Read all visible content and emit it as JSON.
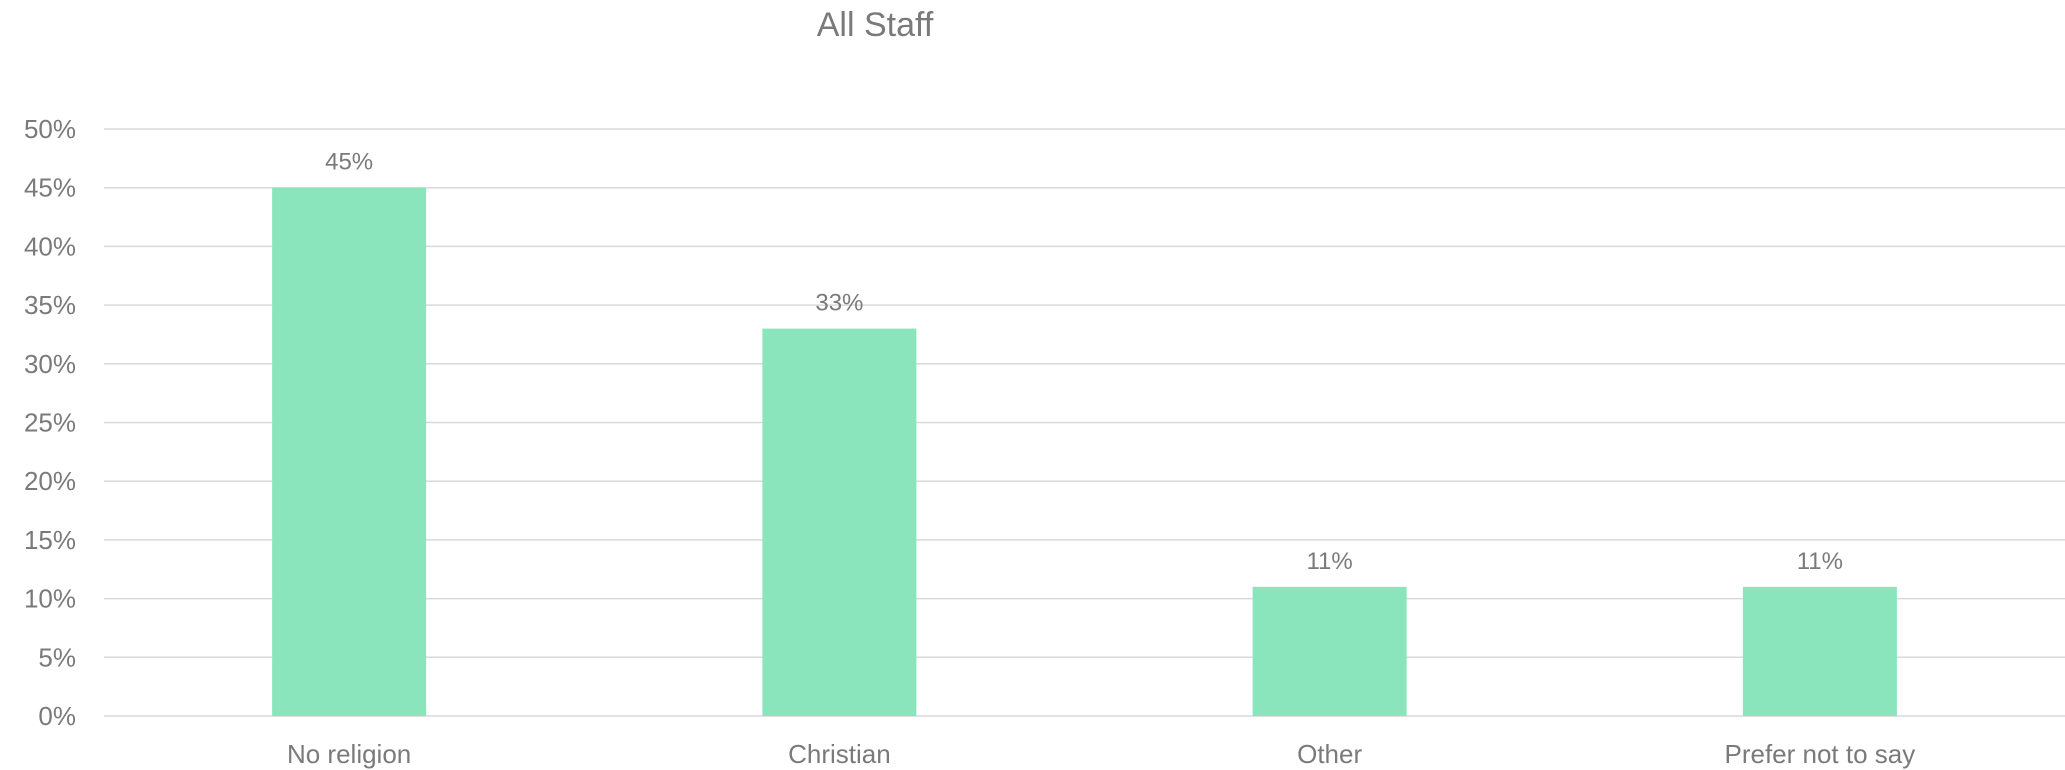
{
  "chart_data": {
    "type": "bar",
    "title": "All Staff",
    "categories": [
      "No religion",
      "Christian",
      "Other",
      "Prefer not to say"
    ],
    "values": [
      45,
      33,
      11,
      11
    ],
    "value_labels": [
      "45%",
      "33%",
      "11%",
      "11%"
    ],
    "ylim": [
      0,
      50
    ],
    "y_ticks": [
      0,
      5,
      10,
      15,
      20,
      25,
      30,
      35,
      40,
      45,
      50
    ],
    "y_tick_labels": [
      "0%",
      "5%",
      "10%",
      "15%",
      "20%",
      "25%",
      "30%",
      "35%",
      "40%",
      "45%",
      "50%"
    ],
    "xlabel": "",
    "ylabel": "",
    "grid": true,
    "legend": "none",
    "bar_color": "#8ae5bd"
  }
}
